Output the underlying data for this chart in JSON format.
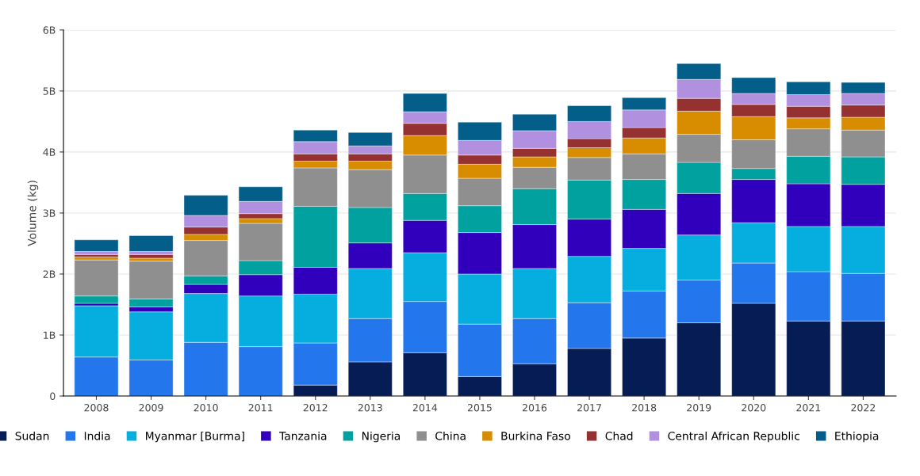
{
  "chart_data": {
    "type": "bar",
    "stacked": true,
    "ylabel": "Volume (kg)",
    "categories": [
      "2008",
      "2009",
      "2010",
      "2011",
      "2012",
      "2013",
      "2014",
      "2015",
      "2016",
      "2017",
      "2018",
      "2019",
      "2020",
      "2021",
      "2022"
    ],
    "series": [
      {
        "name": "Sudan",
        "color": "#061c54",
        "values": [
          0,
          0,
          0,
          0,
          0.18,
          0.56,
          0.71,
          0.32,
          0.53,
          0.78,
          0.95,
          1.2,
          1.52,
          1.23,
          1.23
        ]
      },
      {
        "name": "India",
        "color": "#2476ec",
        "values": [
          0.64,
          0.59,
          0.88,
          0.81,
          0.69,
          0.71,
          0.84,
          0.86,
          0.74,
          0.75,
          0.77,
          0.7,
          0.66,
          0.81,
          0.78
        ]
      },
      {
        "name": "Myanmar [Burma]",
        "color": "#06aee0",
        "values": [
          0.84,
          0.79,
          0.8,
          0.83,
          0.8,
          0.82,
          0.8,
          0.82,
          0.82,
          0.76,
          0.7,
          0.74,
          0.66,
          0.74,
          0.77
        ]
      },
      {
        "name": "Tanzania",
        "color": "#3100bd",
        "values": [
          0.04,
          0.08,
          0.15,
          0.35,
          0.44,
          0.42,
          0.53,
          0.68,
          0.72,
          0.61,
          0.64,
          0.68,
          0.71,
          0.7,
          0.69
        ]
      },
      {
        "name": "Nigeria",
        "color": "#00a19f",
        "values": [
          0.12,
          0.13,
          0.14,
          0.23,
          1.0,
          0.58,
          0.44,
          0.44,
          0.59,
          0.64,
          0.49,
          0.51,
          0.18,
          0.45,
          0.45
        ]
      },
      {
        "name": "China",
        "color": "#8f8f8f",
        "values": [
          0.59,
          0.62,
          0.58,
          0.61,
          0.63,
          0.62,
          0.63,
          0.45,
          0.35,
          0.37,
          0.42,
          0.46,
          0.47,
          0.45,
          0.44
        ]
      },
      {
        "name": "Burkina Faso",
        "color": "#d88d00",
        "values": [
          0.05,
          0.05,
          0.1,
          0.08,
          0.11,
          0.14,
          0.32,
          0.23,
          0.17,
          0.16,
          0.26,
          0.38,
          0.38,
          0.18,
          0.21
        ]
      },
      {
        "name": "Chad",
        "color": "#963131",
        "values": [
          0.04,
          0.06,
          0.12,
          0.08,
          0.12,
          0.12,
          0.2,
          0.15,
          0.14,
          0.15,
          0.17,
          0.21,
          0.2,
          0.19,
          0.2
        ]
      },
      {
        "name": "Central African Republic",
        "color": "#b190e0",
        "values": [
          0.05,
          0.05,
          0.19,
          0.2,
          0.2,
          0.13,
          0.19,
          0.24,
          0.29,
          0.28,
          0.29,
          0.31,
          0.18,
          0.19,
          0.19
        ]
      },
      {
        "name": "Ethiopia",
        "color": "#035e8a",
        "values": [
          0.19,
          0.26,
          0.33,
          0.24,
          0.19,
          0.22,
          0.3,
          0.3,
          0.27,
          0.26,
          0.2,
          0.26,
          0.26,
          0.21,
          0.18
        ]
      }
    ],
    "ylim": [
      0,
      6
    ],
    "yticks": [
      0,
      {
        "value": 1,
        "label": "1B"
      },
      {
        "value": 2,
        "label": "2B"
      },
      {
        "value": 3,
        "label": "3B"
      },
      {
        "value": 4,
        "label": "4B"
      },
      {
        "value": 5,
        "label": "5B"
      },
      {
        "value": 6,
        "label": "6B"
      }
    ],
    "grid": "y",
    "legend": "bottom"
  }
}
